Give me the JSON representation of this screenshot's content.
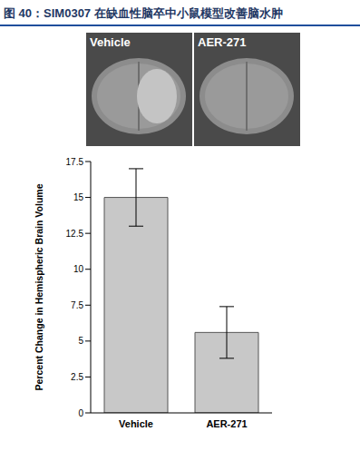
{
  "chart_data": {
    "type": "bar",
    "title": "图 40：SIM0307 在缺血性脑卒中小鼠模型改善脑水肿",
    "annotations": [
      "Vehicle",
      "AER-271"
    ],
    "categories": [
      "Vehicle",
      "AER-271"
    ],
    "values": [
      15,
      5.6
    ],
    "errors": [
      2.0,
      1.8
    ],
    "color": "#c8c8c8",
    "y_label": "Percent Change in Hemispheric Brain Volume",
    "ylim": [
      0,
      17.5
    ],
    "yticks": [
      0,
      2.5,
      5,
      7.5,
      10,
      12.5,
      15,
      17.5
    ],
    "grid": false
  }
}
